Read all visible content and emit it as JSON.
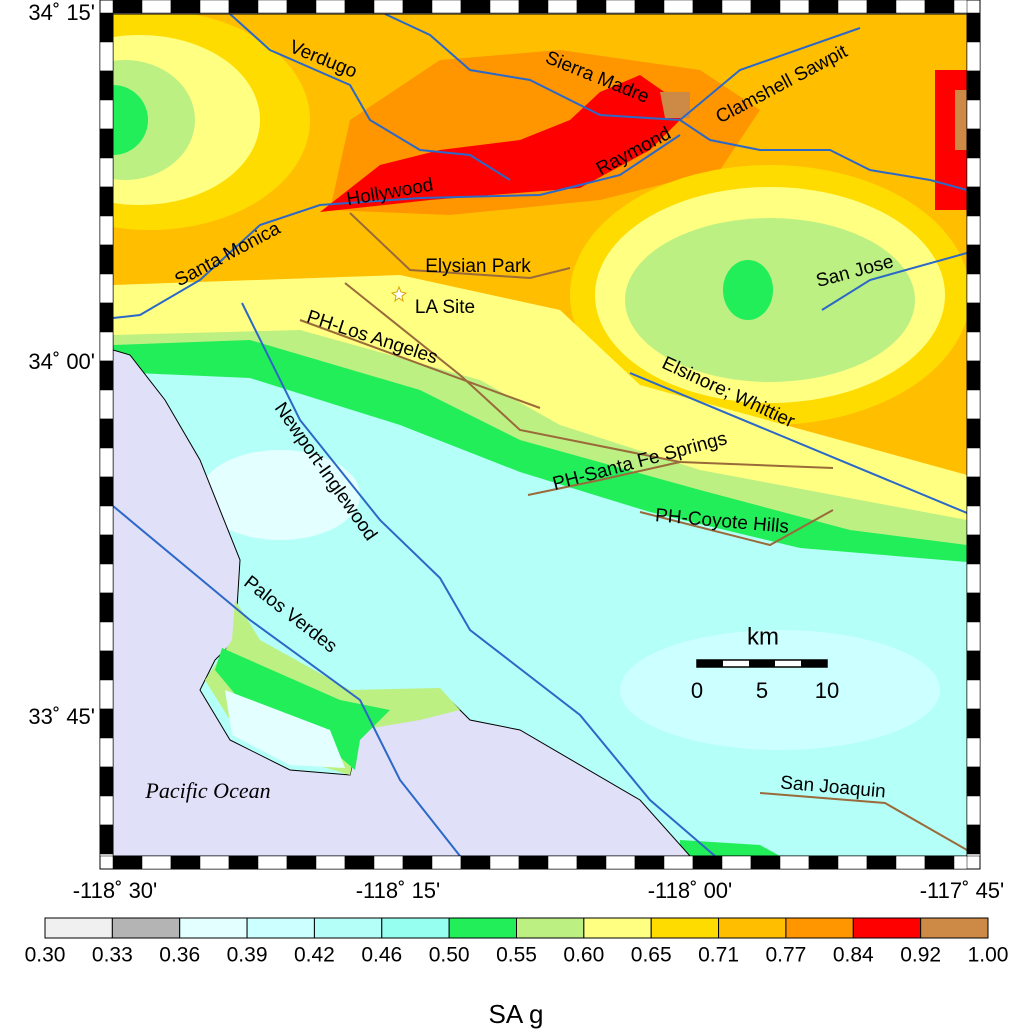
{
  "map": {
    "lat_labels": [
      "34˚ 15'",
      "34˚ 00'",
      "33˚ 45'"
    ],
    "lon_labels": [
      "-118˚ 30'",
      "-118˚ 15'",
      "-118˚ 00'",
      "-117˚ 45'"
    ],
    "faults": [
      "Verdugo",
      "Sierra Madre",
      "Clamshell Sawpit",
      "Raymond",
      "Hollywood",
      "Santa Monica",
      "Elysian Park",
      "San Jose",
      "PH-Los Angeles",
      "Elsinore; Whittier",
      "Newport-Inglewood",
      "PH-Santa Fe Springs",
      "PH-Coyote Hills",
      "Palos Verdes",
      "San Joaquin"
    ],
    "site": "LA Site",
    "ocean": "Pacific Ocean",
    "scale": {
      "unit": "km",
      "labels": [
        "0",
        "5",
        "10"
      ]
    }
  },
  "colorbar": {
    "title": "SA g",
    "labels": [
      "0.30",
      "0.33",
      "0.36",
      "0.39",
      "0.42",
      "0.46",
      "0.50",
      "0.55",
      "0.60",
      "0.65",
      "0.71",
      "0.77",
      "0.84",
      "0.92",
      "1.00"
    ],
    "colors": [
      "#f0f0f0",
      "#b4b4b4",
      "#e4ffff",
      "#ccffff",
      "#b4fff8",
      "#96fff0",
      "#22ee5a",
      "#bdf082",
      "#ffff82",
      "#ffdc00",
      "#ffbe00",
      "#ff9600",
      "#ff0000",
      "#cd8a46"
    ]
  }
}
